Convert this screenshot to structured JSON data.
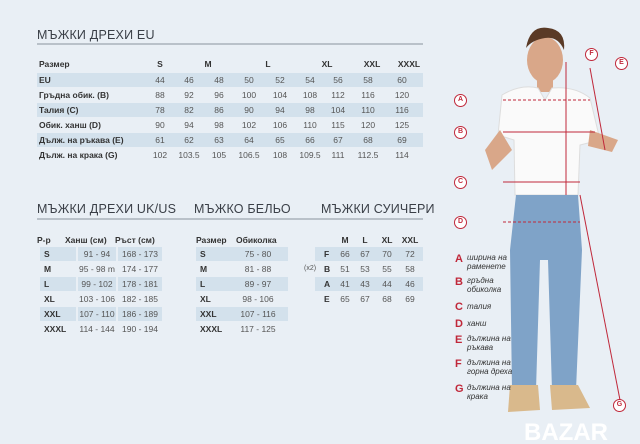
{
  "eu": {
    "title": "МЪЖКИ ДРЕХИ EU",
    "header_label": "Размер",
    "sizes": [
      "S",
      "M",
      "L",
      "XL",
      "XXL",
      "XXXL"
    ],
    "rows": [
      {
        "label": "EU",
        "values": [
          "44",
          "46",
          "48",
          "50",
          "52",
          "54",
          "56",
          "58",
          "60"
        ]
      },
      {
        "label": "Гръдна обик. (B)",
        "values": [
          "88",
          "92",
          "96",
          "100",
          "104",
          "108",
          "112",
          "116",
          "120"
        ]
      },
      {
        "label": "Талия (C)",
        "values": [
          "78",
          "82",
          "86",
          "90",
          "94",
          "98",
          "104",
          "110",
          "116"
        ]
      },
      {
        "label": "Обик. ханш (D)",
        "values": [
          "90",
          "94",
          "98",
          "102",
          "106",
          "110",
          "115",
          "120",
          "125"
        ]
      },
      {
        "label": "Дълж. на ръкава  (E)",
        "values": [
          "61",
          "62",
          "63",
          "64",
          "65",
          "66",
          "67",
          "68",
          "69"
        ]
      },
      {
        "label": "Дълж. на крака (G)",
        "values": [
          "102",
          "103.5",
          "105",
          "106.5",
          "108",
          "109.5",
          "111",
          "112.5",
          "114"
        ]
      }
    ]
  },
  "ukus": {
    "title": "МЪЖКИ ДРЕХИ UK/US",
    "headers": [
      "Р-р",
      "Ханш (см)",
      "Ръст (см)"
    ],
    "rows": [
      [
        "S",
        "91 - 94",
        "168 - 173"
      ],
      [
        "M",
        "95 - 98 m",
        "174 - 177"
      ],
      [
        "L",
        "99 - 102",
        "178 - 181"
      ],
      [
        "XL",
        "103 - 106",
        "182 - 185"
      ],
      [
        "XXL",
        "107 - 110",
        "186 - 189"
      ],
      [
        "XXXL",
        "114 - 144",
        "190 - 194"
      ]
    ]
  },
  "underwear": {
    "title": "МЪЖКО БЕЛЬО",
    "headers": [
      "Размер",
      "Обиколка"
    ],
    "rows": [
      [
        "S",
        "75 - 80"
      ],
      [
        "M",
        "81 - 88"
      ],
      [
        "L",
        "89 - 97"
      ],
      [
        "XL",
        "98 - 106"
      ],
      [
        "XXL",
        "107 - 116"
      ],
      [
        "XXXL",
        "117 - 125"
      ]
    ]
  },
  "sweatshirts": {
    "title": "МЪЖКИ СУИЧЕРИ",
    "headers": [
      "M",
      "L",
      "XL",
      "XXL"
    ],
    "rows": [
      {
        "prefix": "",
        "label": "F",
        "values": [
          "66",
          "67",
          "70",
          "72"
        ]
      },
      {
        "prefix": "(x2)",
        "label": "B",
        "values": [
          "51",
          "53",
          "55",
          "58"
        ]
      },
      {
        "prefix": "",
        "label": "A",
        "values": [
          "41",
          "43",
          "44",
          "46"
        ]
      },
      {
        "prefix": "",
        "label": "E",
        "values": [
          "65",
          "67",
          "68",
          "69"
        ]
      }
    ]
  },
  "legend": [
    {
      "letter": "A",
      "text": "ширина на раменете"
    },
    {
      "letter": "B",
      "text": "гръдна обиколка"
    },
    {
      "letter": "C",
      "text": "талия"
    },
    {
      "letter": "D",
      "text": "ханш"
    },
    {
      "letter": "E",
      "text": "дължина на ръкава"
    },
    {
      "letter": "F",
      "text": "дължина на горна дреха"
    },
    {
      "letter": "G",
      "text": "дължина на крака"
    }
  ],
  "watermark": "BAZAR",
  "colors": {
    "accent": "#c0283a",
    "band": "#d3e1ec",
    "background": "#e9eff5"
  }
}
